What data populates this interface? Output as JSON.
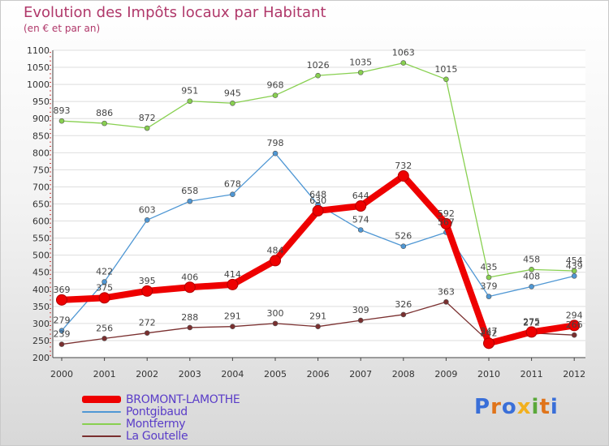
{
  "title": "Evolution des Impôts locaux par Habitant",
  "subtitle": "(en € et par an)",
  "logo": {
    "text": "Proxiti",
    "colors": [
      "#3a6fd8",
      "#e0741a",
      "#3a6fd8",
      "#f2b01e",
      "#5aa83a",
      "#e0741a",
      "#3a6fd8"
    ]
  },
  "chart_data": {
    "type": "line",
    "title": "Evolution des Impôts locaux par Habitant",
    "subtitle": "(en € et par an)",
    "xlabel": "",
    "ylabel": "",
    "ylim": [
      200,
      1100
    ],
    "yticks": [
      "200",
      "250",
      "300",
      "350",
      "400",
      "450",
      "500",
      "550",
      "600",
      "650",
      "700",
      "750",
      "800",
      "850",
      "900",
      "950",
      "1000",
      "1050",
      "1100"
    ],
    "categories": [
      "2000",
      "2001",
      "2002",
      "2003",
      "2004",
      "2005",
      "2006",
      "2007",
      "2008",
      "2009",
      "2010",
      "2011",
      "2012"
    ],
    "series": [
      {
        "name": "BROMONT-LAMOTHE",
        "color": "#ee0000",
        "values": [
          369,
          375,
          395,
          406,
          414,
          484,
          630,
          644,
          732,
          592,
          242,
          275,
          294
        ],
        "labels": [
          "369",
          "375",
          "395",
          "406",
          "414",
          "484",
          "630",
          "644",
          "732",
          "592",
          "242",
          "275",
          "294"
        ]
      },
      {
        "name": "Pontgibaud",
        "color": "#4f97d4",
        "values": [
          279,
          422,
          603,
          658,
          678,
          798,
          648,
          574,
          526,
          567,
          379,
          408,
          439
        ],
        "labels": [
          "279",
          "422",
          "603",
          "658",
          "678",
          "798",
          "648",
          "574",
          "526",
          "567",
          "379",
          "408",
          "439"
        ]
      },
      {
        "name": "Montfermy",
        "color": "#88d050",
        "values": [
          893,
          886,
          872,
          951,
          945,
          968,
          1026,
          1035,
          1063,
          1015,
          435,
          458,
          454
        ],
        "labels": [
          "893",
          "886",
          "872",
          "951",
          "945",
          "968",
          "1026",
          "1035",
          "1063",
          "1015",
          "435",
          "458",
          "454"
        ]
      },
      {
        "name": "La Goutelle",
        "color": "#7a2f2f",
        "values": [
          239,
          256,
          272,
          288,
          291,
          300,
          291,
          309,
          326,
          363,
          247,
          272,
          266
        ],
        "labels": [
          "239",
          "256",
          "272",
          "288",
          "291",
          "300",
          "291",
          "309",
          "326",
          "363",
          "247",
          "272",
          "266"
        ]
      }
    ],
    "legend": [
      {
        "label": "BROMONT-LAMOTHE",
        "color": "#ee0000"
      },
      {
        "label": "Pontgibaud",
        "color": "#4f97d4"
      },
      {
        "label": "Montfermy",
        "color": "#88d050"
      },
      {
        "label": "La Goutelle",
        "color": "#7a2f2f"
      }
    ]
  }
}
